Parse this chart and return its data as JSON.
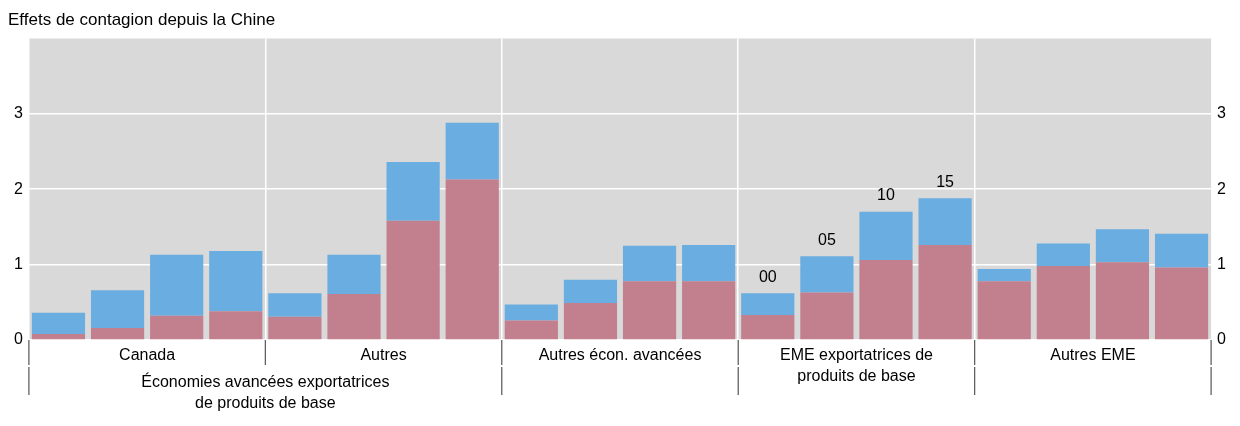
{
  "chart_data": {
    "type": "bar",
    "title": "Effets de contagion depuis la Chine",
    "stacked": true,
    "grid": true,
    "categories": [
      null,
      null,
      null,
      null,
      null,
      null,
      null,
      null,
      null,
      null,
      null,
      null,
      "00",
      "05",
      "10",
      "15",
      null,
      null,
      null,
      null
    ],
    "series": [
      {
        "color": "#c27f8e",
        "values": [
          0.08,
          0.16,
          0.32,
          0.38,
          0.31,
          0.61,
          1.58,
          2.13,
          0.26,
          0.49,
          0.78,
          0.78,
          0.33,
          0.63,
          1.06,
          1.26,
          0.78,
          0.98,
          1.03,
          0.96
        ]
      },
      {
        "color": "#6aade0",
        "values": [
          0.28,
          0.5,
          0.81,
          0.8,
          0.31,
          0.52,
          0.78,
          0.75,
          0.21,
          0.31,
          0.47,
          0.48,
          0.29,
          0.48,
          0.64,
          0.62,
          0.16,
          0.3,
          0.44,
          0.45
        ]
      }
    ],
    "ylim": [
      0,
      4
    ],
    "yticks": [
      0,
      1,
      2,
      3
    ],
    "y2lim": [
      0,
      4
    ],
    "y2ticks": [
      0,
      1,
      2,
      3
    ],
    "annotations": [
      "Canada",
      "Autres",
      "Autres écon. avancées",
      "EME exportatrices de\nproduits de base",
      "Autres EME",
      "Économies avancées exportatrices\nde produits de base"
    ]
  }
}
